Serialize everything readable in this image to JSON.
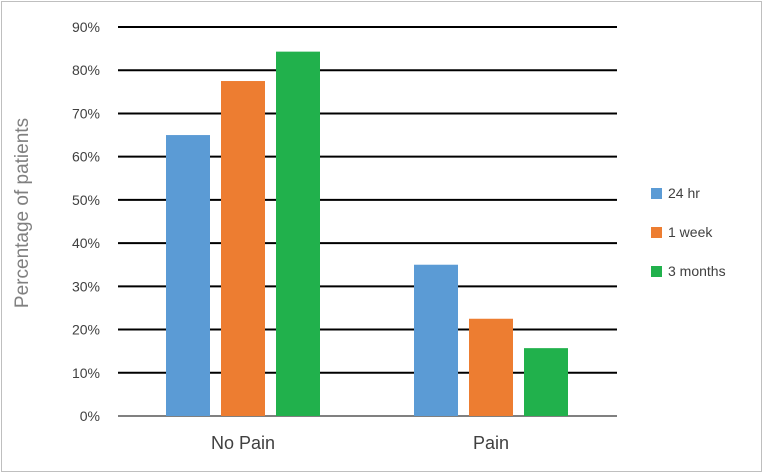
{
  "chart_data": {
    "type": "bar",
    "title": "",
    "xlabel": "",
    "ylabel": "Percentage of patients",
    "categories": [
      "No Pain",
      "Pain"
    ],
    "series": [
      {
        "name": "24 hr",
        "color": "#5b9bd5",
        "values": [
          65,
          35
        ]
      },
      {
        "name": "1 week",
        "color": "#ed7d31",
        "values": [
          77.5,
          22.5
        ]
      },
      {
        "name": "3 months",
        "color": "#21b14c",
        "values": [
          84.3,
          15.7
        ]
      }
    ],
    "ylim": [
      0,
      90
    ],
    "yticks": [
      0,
      10,
      20,
      30,
      40,
      50,
      60,
      70,
      80,
      90
    ],
    "ytick_labels": [
      "0%",
      "10%",
      "20%",
      "30%",
      "40%",
      "50%",
      "60%",
      "70%",
      "80%",
      "90%"
    ],
    "grid": true,
    "legend_position": "right"
  }
}
